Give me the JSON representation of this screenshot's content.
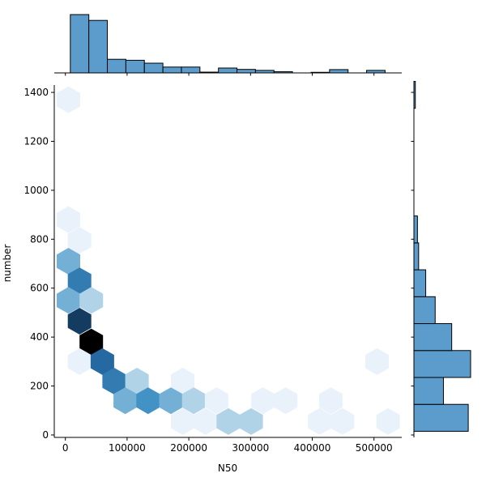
{
  "chart_data": {
    "type": "hexbin",
    "xlabel": "N50",
    "ylabel": "number",
    "xlim": [
      -18000,
      545000
    ],
    "ylim": [
      -10,
      1430
    ],
    "x_ticks": [
      0,
      100000,
      200000,
      300000,
      400000,
      500000
    ],
    "x_tick_labels": [
      "0",
      "100000",
      "200000",
      "300000",
      "400000",
      "500000"
    ],
    "y_ticks": [
      0,
      200,
      400,
      600,
      800,
      1000,
      1200,
      1400
    ],
    "y_tick_labels": [
      "0",
      "200",
      "400",
      "600",
      "800",
      "1000",
      "1200",
      "1400"
    ],
    "hexbins": [
      {
        "x": 5000,
        "y": 1370,
        "count": 1
      },
      {
        "x": 5000,
        "y": 880,
        "count": 1
      },
      {
        "x": 23000,
        "y": 795,
        "count": 1
      },
      {
        "x": 5000,
        "y": 710,
        "count": 3
      },
      {
        "x": 23000,
        "y": 630,
        "count": 5
      },
      {
        "x": 5000,
        "y": 550,
        "count": 3
      },
      {
        "x": 42000,
        "y": 550,
        "count": 2
      },
      {
        "x": 23000,
        "y": 465,
        "count": 8
      },
      {
        "x": 42000,
        "y": 380,
        "count": 11
      },
      {
        "x": 23000,
        "y": 300,
        "count": 1
      },
      {
        "x": 60000,
        "y": 300,
        "count": 6
      },
      {
        "x": 79000,
        "y": 220,
        "count": 5
      },
      {
        "x": 116000,
        "y": 220,
        "count": 2
      },
      {
        "x": 190000,
        "y": 220,
        "count": 1
      },
      {
        "x": 97000,
        "y": 140,
        "count": 3
      },
      {
        "x": 134000,
        "y": 140,
        "count": 4
      },
      {
        "x": 171000,
        "y": 140,
        "count": 3
      },
      {
        "x": 208000,
        "y": 140,
        "count": 2
      },
      {
        "x": 245000,
        "y": 140,
        "count": 1
      },
      {
        "x": 320000,
        "y": 140,
        "count": 1
      },
      {
        "x": 357000,
        "y": 140,
        "count": 1
      },
      {
        "x": 430000,
        "y": 140,
        "count": 1
      },
      {
        "x": 190000,
        "y": 55,
        "count": 1
      },
      {
        "x": 227000,
        "y": 55,
        "count": 1
      },
      {
        "x": 264000,
        "y": 55,
        "count": 2
      },
      {
        "x": 301000,
        "y": 55,
        "count": 2
      },
      {
        "x": 412000,
        "y": 55,
        "count": 1
      },
      {
        "x": 449000,
        "y": 55,
        "count": 1
      },
      {
        "x": 523000,
        "y": 55,
        "count": 1
      },
      {
        "x": 505000,
        "y": 300,
        "count": 1
      }
    ],
    "max_count": 11,
    "x_histogram": {
      "bin_start": 8000,
      "bin_width": 30000,
      "counts": [
        30,
        27,
        7,
        6.5,
        5,
        3,
        3,
        0.4,
        2.5,
        1.8,
        1.3,
        0.6,
        0,
        0.3,
        1.7,
        0,
        1.3
      ],
      "max": 30
    },
    "y_histogram": {
      "bin_start": 15,
      "bin_width": 110,
      "counts": [
        23,
        12.5,
        24,
        16,
        9,
        5,
        2,
        1.5,
        0,
        0,
        0,
        0,
        0.6
      ],
      "max": 24
    },
    "colors": {
      "hex_low": "#f7fbff",
      "hex_high": "#000000",
      "bar_fill": "#5b9ccd",
      "bar_edge": "#000000",
      "axis": "#000000"
    }
  }
}
